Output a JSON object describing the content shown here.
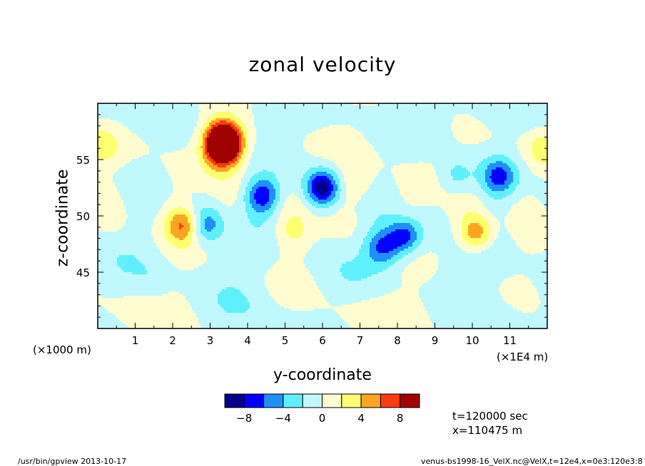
{
  "chart_data": {
    "type": "heatmap",
    "title": "zonal velocity",
    "xlabel": "y-coordinate",
    "ylabel": "z-coordinate",
    "x_unit_note": "(×1E4 m)",
    "y_unit_note": "(×1000 m)",
    "xlim": [
      0,
      12
    ],
    "ylim": [
      40,
      60
    ],
    "x_ticks": [
      "1",
      "2",
      "3",
      "4",
      "5",
      "6",
      "7",
      "8",
      "9",
      "10",
      "11"
    ],
    "y_ticks": [
      "45",
      "50",
      "55"
    ],
    "colorbar": {
      "levels": [
        -10,
        -8,
        -6,
        -4,
        -2,
        0,
        2,
        4,
        6,
        8,
        10
      ],
      "labels": [
        "−8",
        "−4",
        "0",
        "4",
        "8"
      ],
      "colors": [
        "#00008b",
        "#0000ff",
        "#1e90ff",
        "#5ff0ff",
        "#c0f8ff",
        "#fffcd0",
        "#ffff70",
        "#ffa520",
        "#ff3a10",
        "#a00000"
      ]
    },
    "features": [
      {
        "y": 3.5,
        "z": 56.5,
        "u": 6
      },
      {
        "y": 3.3,
        "z": 57.0,
        "u": 9
      },
      {
        "y": 3.3,
        "z": 55.7,
        "u": 8
      },
      {
        "y": 6.0,
        "z": 52.5,
        "u": -9
      },
      {
        "y": 4.4,
        "z": 51.8,
        "u": -7
      },
      {
        "y": 8.2,
        "z": 48.2,
        "u": -7
      },
      {
        "y": 7.6,
        "z": 47.2,
        "u": -6
      },
      {
        "y": 10.1,
        "z": 48.5,
        "u": 6
      },
      {
        "y": 2.3,
        "z": 49.2,
        "u": 6
      },
      {
        "y": 10.7,
        "z": 53.5,
        "u": -6
      },
      {
        "y": 2.9,
        "z": 49.2,
        "u": -5
      },
      {
        "y": 0.1,
        "z": 56.2,
        "u": 3
      },
      {
        "y": 11.9,
        "z": 56.0,
        "u": 3
      },
      {
        "y": 1.5,
        "z": 44.0,
        "u": -1
      },
      {
        "y": 5.0,
        "z": 43.5,
        "u": 1
      },
      {
        "y": 6.9,
        "z": 53.0,
        "u": 2
      },
      {
        "y": 9.6,
        "z": 53.5,
        "u": -3
      },
      {
        "y": 5.2,
        "z": 48.5,
        "u": 2
      }
    ]
  },
  "info": {
    "time": "t=120000 sec",
    "xpos": "x=110475 m"
  },
  "footer": {
    "left": "/usr/bin/gpview  2013-10-17",
    "right": "venus-bs1998-16_VelX.nc@VelX,t=12e4,x=0e3:120e3:8"
  }
}
